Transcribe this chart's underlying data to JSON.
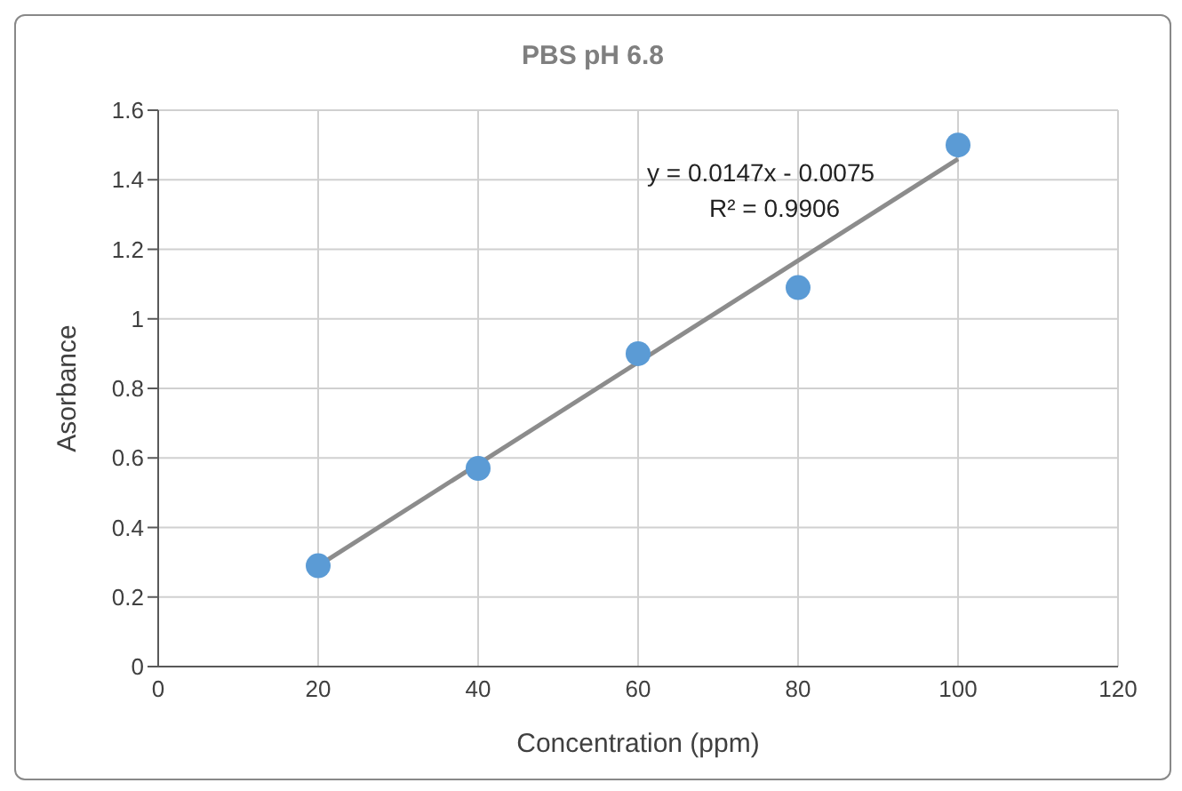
{
  "chart_data": {
    "type": "scatter",
    "title": "PBS pH 6.8",
    "xlabel": "Concentration (ppm)",
    "ylabel": "Asorbance",
    "x": [
      20,
      40,
      60,
      80,
      100
    ],
    "series": [
      {
        "color": "#5b9bd5",
        "values": [
          0.29,
          0.57,
          0.9,
          1.09,
          1.5
        ],
        "marker": "circle"
      },
      {
        "type": "line",
        "color": "#8c8c8c",
        "x": [
          20,
          100
        ],
        "values": [
          0.29,
          1.46
        ],
        "marker": "none",
        "line_style": "solid"
      }
    ],
    "annotations": [
      "y = 0.0147x - 0.0075",
      "R² = 0.9906"
    ],
    "xlim": [
      0,
      120
    ],
    "xticks": [
      0,
      20,
      40,
      60,
      80,
      100,
      120
    ],
    "ylim": [
      0,
      1.6
    ],
    "yticks": [
      0,
      0.2,
      0.4,
      0.6,
      0.8,
      1,
      1.2,
      1.4,
      1.6
    ],
    "grid": true,
    "legend": false
  }
}
